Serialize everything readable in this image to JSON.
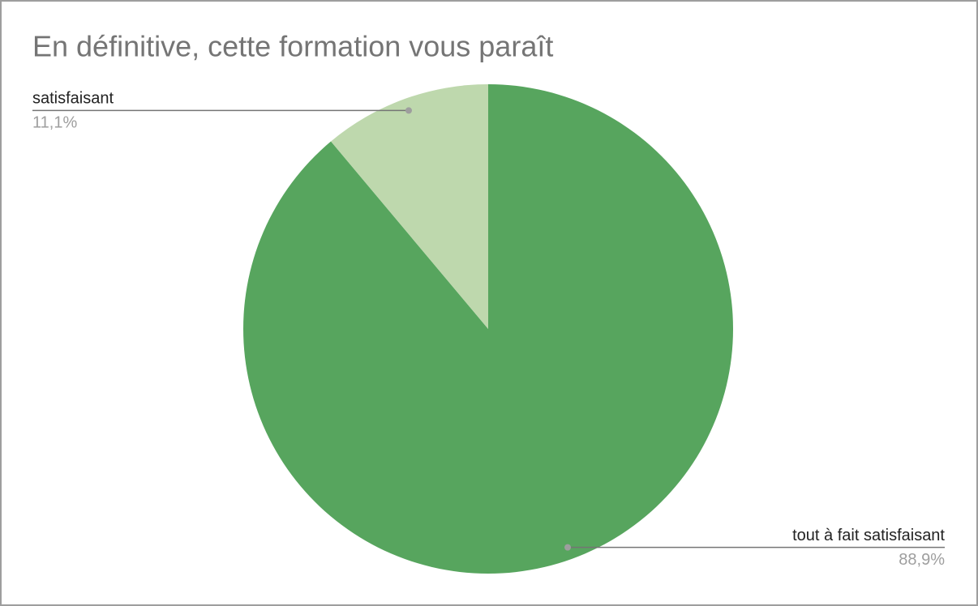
{
  "chart_data": {
    "type": "pie",
    "title": "En définitive, cette formation vous paraît",
    "categories": [
      "tout à fait satisfaisant",
      "satisfaisant"
    ],
    "values": [
      88.9,
      11.1
    ],
    "value_labels": [
      "88,9%",
      "11,1%"
    ],
    "colors": [
      "#57a55e",
      "#bed8ad"
    ]
  }
}
